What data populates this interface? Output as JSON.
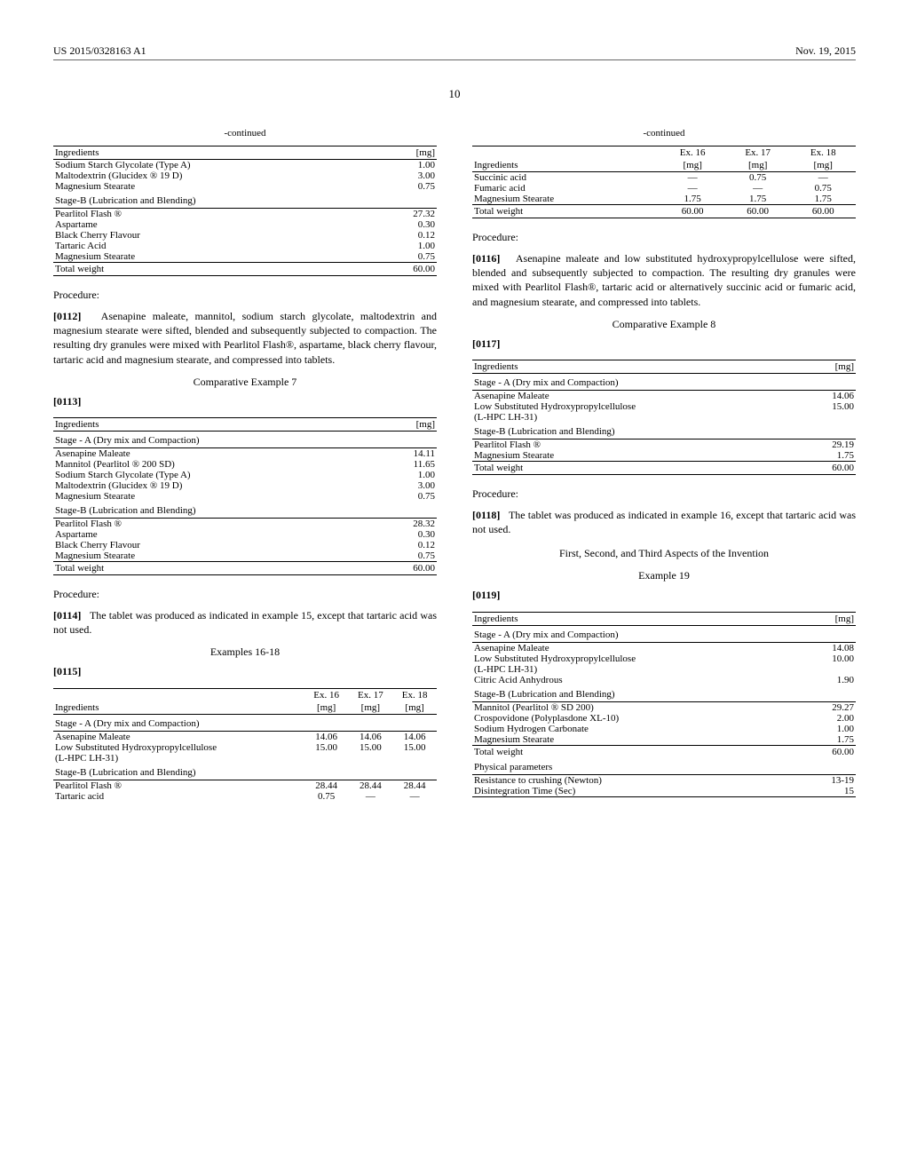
{
  "header": {
    "patent_no": "US 2015/0328163 A1",
    "date": "Nov. 19, 2015",
    "page": "10"
  },
  "labels": {
    "continued": "-continued",
    "ingredients": "Ingredients",
    "mg": "[mg]",
    "procedure": "Procedure:",
    "total_weight": "Total weight",
    "stage_a": "Stage - A (Dry mix and Compaction)",
    "stage_b": "Stage-B (Lubrication and Blending)"
  },
  "tableA": {
    "rows": [
      {
        "name": "Sodium Starch Glycolate (Type A)",
        "mg": "1.00"
      },
      {
        "name": "Maltodextrin (Glucidex ® 19 D)",
        "mg": "3.00"
      },
      {
        "name": "Magnesium Stearate",
        "mg": "0.75"
      }
    ],
    "rowsB": [
      {
        "name": "Pearlitol Flash ®",
        "mg": "27.32"
      },
      {
        "name": "Aspartame",
        "mg": "0.30"
      },
      {
        "name": "Black Cherry Flavour",
        "mg": "0.12"
      },
      {
        "name": "Tartaric Acid",
        "mg": "1.00"
      },
      {
        "name": "Magnesium Stearate",
        "mg": "0.75"
      }
    ],
    "total": "60.00"
  },
  "para0112": {
    "num": "[0112]",
    "text": "Asenapine maleate, mannitol, sodium starch glycolate, maltodextrin and magnesium stearate were sifted, blended and subsequently subjected to compaction. The resulting dry granules were mixed with Pearlitol Flash®, aspartame, black cherry flavour, tartaric acid and magnesium stearate, and compressed into tablets."
  },
  "comp7": {
    "title": "Comparative Example 7",
    "num": "[0113]"
  },
  "tableB": {
    "rowsA": [
      {
        "name": "Asenapine Maleate",
        "mg": "14.11"
      },
      {
        "name": "Mannitol (Pearlitol ® 200 SD)",
        "mg": "11.65"
      },
      {
        "name": "Sodium Starch Glycolate (Type A)",
        "mg": "1.00"
      },
      {
        "name": "Maltodextrin (Glucidex ® 19 D)",
        "mg": "3.00"
      },
      {
        "name": "Magnesium Stearate",
        "mg": "0.75"
      }
    ],
    "rowsB": [
      {
        "name": "Pearlitol Flash ®",
        "mg": "28.32"
      },
      {
        "name": "Aspartame",
        "mg": "0.30"
      },
      {
        "name": "Black Cherry Flavour",
        "mg": "0.12"
      },
      {
        "name": "Magnesium Stearate",
        "mg": "0.75"
      }
    ],
    "total": "60.00"
  },
  "para0114": {
    "num": "[0114]",
    "text": "The tablet was produced as indicated in example 15, except that tartaric acid was not used."
  },
  "ex16_18": {
    "title": "Examples 16-18",
    "num": "[0115]"
  },
  "tableC_head": {
    "c1": "Ex. 16",
    "c2": "Ex. 17",
    "c3": "Ex. 18"
  },
  "tableC": {
    "rowsA": [
      {
        "name": "Asenapine Maleate",
        "v": [
          "14.06",
          "14.06",
          "14.06"
        ]
      },
      {
        "name": "Low Substituted Hydroxypropylcellulose",
        "v": [
          "15.00",
          "15.00",
          "15.00"
        ]
      },
      {
        "name": "(L-HPC LH-31)",
        "v": [
          "",
          "",
          ""
        ]
      }
    ],
    "rowsB": [
      {
        "name": "Pearlitol Flash ®",
        "v": [
          "28.44",
          "28.44",
          "28.44"
        ]
      },
      {
        "name": "Tartaric acid",
        "v": [
          "0.75",
          "—",
          "—"
        ]
      }
    ]
  },
  "tableC2": {
    "rows": [
      {
        "name": "Succinic acid",
        "v": [
          "—",
          "0.75",
          "—"
        ]
      },
      {
        "name": "Fumaric acid",
        "v": [
          "—",
          "—",
          "0.75"
        ]
      },
      {
        "name": "Magnesium Stearate",
        "v": [
          "1.75",
          "1.75",
          "1.75"
        ]
      }
    ],
    "total": [
      "60.00",
      "60.00",
      "60.00"
    ]
  },
  "para0116": {
    "num": "[0116]",
    "text": "Asenapine maleate and low substituted hydroxypropylcellulose were sifted, blended and subsequently subjected to compaction. The resulting dry granules were mixed with Pearlitol Flash®, tartaric acid or alternatively succinic acid or fumaric acid, and magnesium stearate, and compressed into tablets."
  },
  "comp8": {
    "title": "Comparative Example 8",
    "num": "[0117]"
  },
  "tableD": {
    "rowsA": [
      {
        "name": "Asenapine Maleate",
        "mg": "14.06"
      },
      {
        "name": "Low Substituted Hydroxypropylcellulose",
        "mg": "15.00"
      },
      {
        "name": "(L-HPC LH-31)",
        "mg": ""
      }
    ],
    "rowsB": [
      {
        "name": "Pearlitol Flash ®",
        "mg": "29.19"
      },
      {
        "name": "Magnesium Stearate",
        "mg": "1.75"
      }
    ],
    "total": "60.00"
  },
  "para0118": {
    "num": "[0118]",
    "text": "The tablet was produced as indicated in example 16, except that tartaric acid was not used."
  },
  "aspects": {
    "title": "First, Second, and Third Aspects of the Invention"
  },
  "ex19": {
    "title": "Example 19",
    "num": "[0119]"
  },
  "tableE": {
    "rowsA": [
      {
        "name": "Asenapine Maleate",
        "mg": "14.08"
      },
      {
        "name": "Low Substituted Hydroxypropylcellulose",
        "mg": "10.00"
      },
      {
        "name": "(L-HPC LH-31)",
        "mg": ""
      },
      {
        "name": "Citric Acid Anhydrous",
        "mg": "1.90"
      }
    ],
    "rowsB": [
      {
        "name": "Mannitol (Pearlitol ® SD 200)",
        "mg": "29.27"
      },
      {
        "name": "Crospovidone (Polyplasdone XL-10)",
        "mg": "2.00"
      },
      {
        "name": "Sodium Hydrogen Carbonate",
        "mg": "1.00"
      },
      {
        "name": "Magnesium Stearate",
        "mg": "1.75"
      }
    ],
    "total": "60.00",
    "phys_label": "Physical parameters",
    "phys": [
      {
        "name": "Resistance to crushing (Newton)",
        "mg": "13-19"
      },
      {
        "name": "Disintegration Time (Sec)",
        "mg": "15"
      }
    ]
  }
}
